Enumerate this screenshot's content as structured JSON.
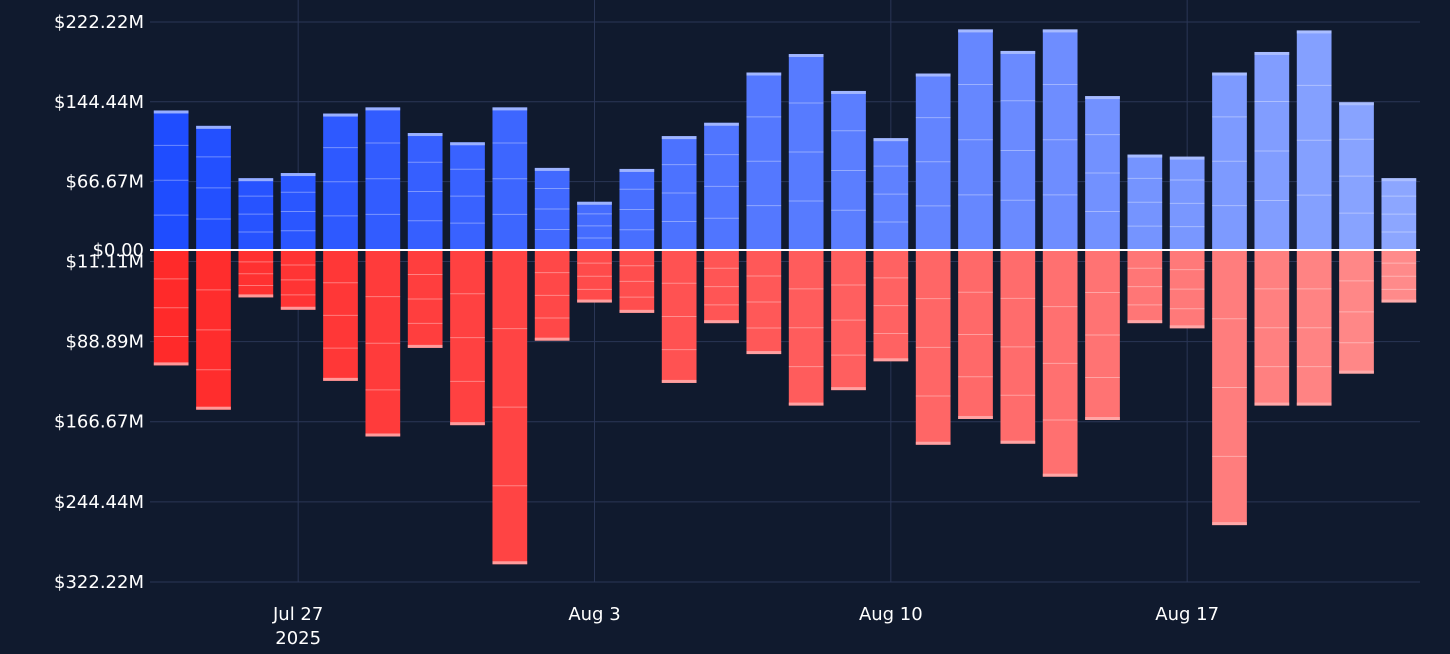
{
  "chart_data": {
    "type": "bar",
    "title": "",
    "xlabel": "",
    "ylabel": "",
    "x_dates": [
      "2025-07-24",
      "2025-07-25",
      "2025-07-26",
      "2025-07-27",
      "2025-07-28",
      "2025-07-29",
      "2025-07-30",
      "2025-07-31",
      "2025-08-01",
      "2025-08-02",
      "2025-08-03",
      "2025-08-04",
      "2025-08-05",
      "2025-08-06",
      "2025-08-07",
      "2025-08-08",
      "2025-08-09",
      "2025-08-10",
      "2025-08-11",
      "2025-08-12",
      "2025-08-13",
      "2025-08-14",
      "2025-08-15",
      "2025-08-16",
      "2025-08-17",
      "2025-08-18",
      "2025-08-19",
      "2025-08-20",
      "2025-08-21",
      "2025-08-22"
    ],
    "x_ticks": [
      {
        "date": "2025-07-27",
        "label": "Jul 27",
        "sublabel": "2025"
      },
      {
        "date": "2025-08-03",
        "label": "Aug 3",
        "sublabel": ""
      },
      {
        "date": "2025-08-10",
        "label": "Aug 10",
        "sublabel": ""
      },
      {
        "date": "2025-08-17",
        "label": "Aug 17",
        "sublabel": ""
      }
    ],
    "y_ticks": [
      {
        "value": 222.22,
        "label": "$222.22M"
      },
      {
        "value": 144.44,
        "label": "$144.44M"
      },
      {
        "value": 66.67,
        "label": "$66.67M"
      },
      {
        "value": 0,
        "label": "$0.00"
      },
      {
        "value": -11.11,
        "label": "$11.11M"
      },
      {
        "value": -88.89,
        "label": "$88.89M"
      },
      {
        "value": -166.67,
        "label": "$166.67M"
      },
      {
        "value": -244.44,
        "label": "$244.44M"
      },
      {
        "value": -322.22,
        "label": "$322.22M"
      }
    ],
    "ylim": [
      -322.22,
      222.22
    ],
    "grid": true,
    "legend": "none",
    "series": [
      {
        "values": [
          136,
          121,
          70,
          75,
          133,
          139,
          114,
          105,
          139,
          80,
          47,
          79,
          111,
          124,
          173,
          191,
          155,
          109,
          172,
          215,
          194,
          215,
          150,
          93,
          91,
          173,
          193,
          214,
          144,
          70
        ]
      },
      {
        "values": [
          -112,
          -155,
          -46,
          -58,
          -127,
          -181,
          -95,
          -170,
          -305,
          -88,
          -51,
          -61,
          -129,
          -71,
          -101,
          -151,
          -136,
          -108,
          -189,
          -164,
          -188,
          -220,
          -165,
          -71,
          -76,
          -267,
          -151,
          -151,
          -120,
          -51
        ]
      }
    ],
    "colors": {
      "background": "#101a2e",
      "grid": "#2a3656",
      "zero_line": "#ffffff",
      "text": "#ffffff",
      "positive_start": "#1f4dff",
      "positive_end": "#8ca6ff",
      "negative_start": "#ff2a2a",
      "negative_end": "#ff8a8a"
    }
  }
}
